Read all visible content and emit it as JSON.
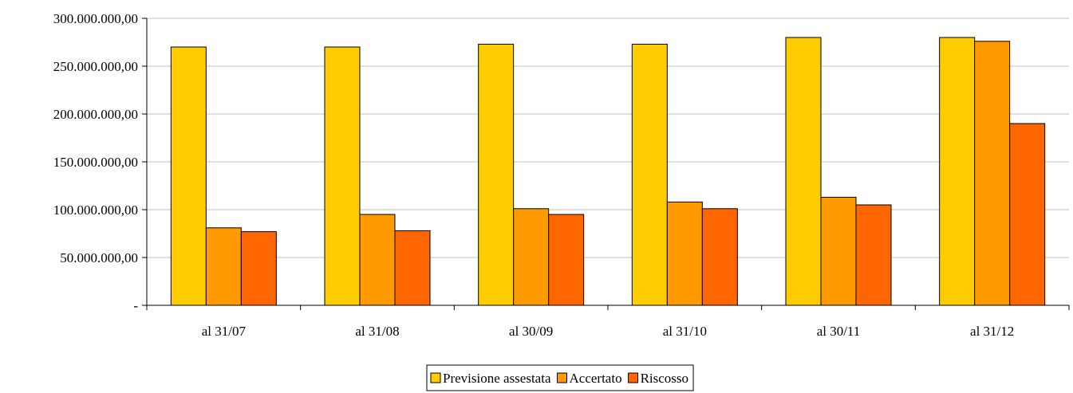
{
  "chart_data": {
    "type": "bar",
    "title": "",
    "xlabel": "",
    "ylabel": "",
    "categories": [
      "al 31/07",
      "al 31/08",
      "al 30/09",
      "al 31/10",
      "al 30/11",
      "al 31/12"
    ],
    "series": [
      {
        "name": "Previsione assestata",
        "color": "#FFCC00",
        "values": [
          270000000,
          270000000,
          273000000,
          273000000,
          280000000,
          280000000
        ]
      },
      {
        "name": "Accertato",
        "color": "#FF9900",
        "values": [
          81000000,
          95000000,
          101000000,
          108000000,
          113000000,
          276000000
        ]
      },
      {
        "name": "Riscosso",
        "color": "#FF6600",
        "values": [
          77000000,
          78000000,
          95000000,
          101000000,
          105000000,
          190000000
        ]
      }
    ],
    "ylim": [
      0,
      300000000
    ],
    "yticks": [
      {
        "value": 0,
        "label": "-"
      },
      {
        "value": 50000000,
        "label": "50.000.000,00"
      },
      {
        "value": 100000000,
        "label": "100.000.000,00"
      },
      {
        "value": 150000000,
        "label": "150.000.000,00"
      },
      {
        "value": 200000000,
        "label": "200.000.000,00"
      },
      {
        "value": 250000000,
        "label": "250.000.000,00"
      },
      {
        "value": 300000000,
        "label": "300.000.000,00"
      }
    ],
    "grid": true,
    "legend_position": "bottom",
    "gridline_color": "#C0C0C0",
    "bar_outline_color": "#000000"
  }
}
